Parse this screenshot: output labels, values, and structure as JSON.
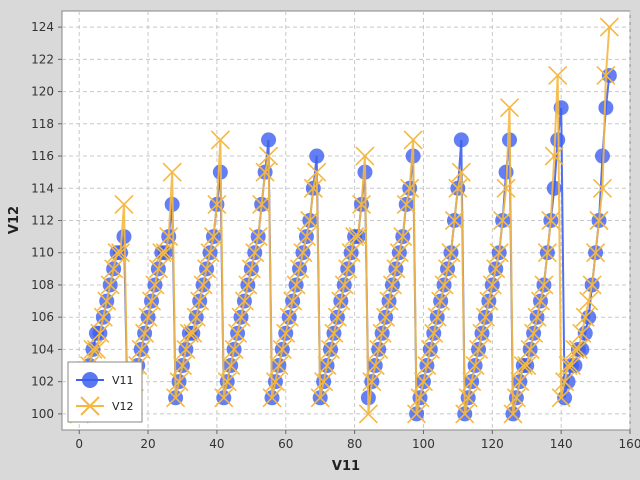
{
  "chart_data": {
    "type": "line",
    "xlabel": "V11",
    "ylabel": "V12",
    "xlim": [
      -5,
      160
    ],
    "ylim": [
      99,
      125
    ],
    "x_ticks": [
      "0",
      "20",
      "40",
      "60",
      "80",
      "100",
      "120",
      "140",
      "160"
    ],
    "y_ticks": [
      "100",
      "102",
      "104",
      "106",
      "108",
      "110",
      "112",
      "114",
      "116",
      "118",
      "120",
      "122",
      "124"
    ],
    "grid": true,
    "legend": {
      "position": "bottom-left"
    },
    "series": [
      {
        "name": "V11",
        "color": "#3d5ff0",
        "marker": "circle",
        "x": [
          0,
          1,
          2,
          3,
          4,
          5,
          6,
          7,
          8,
          9,
          10,
          11,
          12,
          13,
          14,
          15,
          16,
          17,
          18,
          19,
          20,
          21,
          22,
          23,
          24,
          25,
          26,
          27,
          28,
          29,
          30,
          31,
          32,
          33,
          34,
          35,
          36,
          37,
          38,
          39,
          40,
          41,
          42,
          43,
          44,
          45,
          46,
          47,
          48,
          49,
          50,
          51,
          52,
          53,
          54,
          55,
          56,
          57,
          58,
          59,
          60,
          61,
          62,
          63,
          64,
          65,
          66,
          67,
          68,
          69,
          70,
          71,
          72,
          73,
          74,
          75,
          76,
          77,
          78,
          79,
          80,
          81,
          82,
          83,
          84,
          85,
          86,
          87,
          88,
          89,
          90,
          91,
          92,
          93,
          94,
          95,
          96,
          97,
          98,
          99,
          100,
          101,
          102,
          103,
          104,
          105,
          106,
          107,
          108,
          109,
          110,
          111,
          112,
          113,
          114,
          115,
          116,
          117,
          118,
          119,
          120,
          121,
          122,
          123,
          124,
          125,
          126,
          127,
          128,
          129,
          130,
          131,
          132,
          133,
          134,
          135,
          136,
          137,
          138,
          139,
          140,
          141,
          142,
          143,
          144,
          145,
          146,
          147,
          148,
          149,
          150,
          151,
          152,
          153,
          154
        ],
        "y": [
          100,
          101,
          102,
          103,
          104,
          105,
          105,
          106,
          107,
          108,
          109,
          110,
          110,
          111,
          101,
          101,
          102,
          103,
          104,
          105,
          106,
          107,
          108,
          109,
          110,
          110,
          111,
          113,
          101,
          102,
          103,
          104,
          105,
          105,
          106,
          107,
          108,
          109,
          110,
          111,
          113,
          115,
          101,
          102,
          103,
          104,
          105,
          106,
          107,
          108,
          109,
          110,
          111,
          113,
          115,
          117,
          101,
          102,
          103,
          104,
          105,
          106,
          107,
          108,
          109,
          110,
          111,
          112,
          114,
          116,
          101,
          102,
          103,
          104,
          105,
          106,
          107,
          108,
          109,
          110,
          111,
          111,
          113,
          115,
          101,
          102,
          103,
          104,
          105,
          106,
          107,
          108,
          109,
          110,
          111,
          113,
          114,
          116,
          100,
          101,
          102,
          103,
          104,
          105,
          106,
          107,
          108,
          109,
          110,
          112,
          114,
          117,
          100,
          101,
          102,
          103,
          104,
          105,
          106,
          107,
          108,
          109,
          110,
          112,
          115,
          117,
          100,
          101,
          102,
          103,
          103,
          104,
          105,
          106,
          107,
          108,
          110,
          112,
          114,
          117,
          119,
          101,
          102,
          103,
          103,
          104,
          104,
          105,
          106,
          108,
          110,
          112,
          116,
          119,
          121
        ]
      },
      {
        "name": "V12",
        "color": "#f5b840",
        "marker": "x",
        "x": [
          0,
          1,
          2,
          3,
          4,
          5,
          6,
          7,
          8,
          9,
          10,
          11,
          12,
          13,
          14,
          15,
          16,
          17,
          18,
          19,
          20,
          21,
          22,
          23,
          24,
          25,
          26,
          27,
          28,
          29,
          30,
          31,
          32,
          33,
          34,
          35,
          36,
          37,
          38,
          39,
          40,
          41,
          42,
          43,
          44,
          45,
          46,
          47,
          48,
          49,
          50,
          51,
          52,
          53,
          54,
          55,
          56,
          57,
          58,
          59,
          60,
          61,
          62,
          63,
          64,
          65,
          66,
          67,
          68,
          69,
          70,
          71,
          72,
          73,
          74,
          75,
          76,
          77,
          78,
          79,
          80,
          81,
          82,
          83,
          84,
          85,
          86,
          87,
          88,
          89,
          90,
          91,
          92,
          93,
          94,
          95,
          96,
          97,
          98,
          99,
          100,
          101,
          102,
          103,
          104,
          105,
          106,
          107,
          108,
          109,
          110,
          111,
          112,
          113,
          114,
          115,
          116,
          117,
          118,
          119,
          120,
          121,
          122,
          123,
          124,
          125,
          126,
          127,
          128,
          129,
          130,
          131,
          132,
          133,
          134,
          135,
          136,
          137,
          138,
          139,
          140,
          141,
          142,
          143,
          144,
          145,
          146,
          147,
          148,
          149,
          150,
          151,
          152,
          153,
          154
        ],
        "y": [
          100,
          101,
          102,
          103,
          104,
          104,
          105,
          106,
          107,
          108,
          109,
          110,
          110,
          113,
          101,
          101,
          102,
          103,
          104,
          105,
          106,
          107,
          108,
          109,
          110,
          110,
          111,
          115,
          101,
          102,
          103,
          104,
          105,
          105,
          106,
          107,
          108,
          109,
          110,
          111,
          113,
          117,
          101,
          102,
          103,
          104,
          105,
          106,
          107,
          108,
          109,
          110,
          111,
          113,
          115,
          116,
          101,
          102,
          103,
          104,
          105,
          106,
          107,
          108,
          109,
          110,
          111,
          112,
          114,
          115,
          101,
          102,
          103,
          104,
          105,
          106,
          107,
          108,
          109,
          110,
          111,
          111,
          113,
          116,
          100,
          102,
          103,
          104,
          105,
          106,
          107,
          108,
          109,
          110,
          111,
          113,
          114,
          117,
          100,
          101,
          102,
          103,
          104,
          105,
          106,
          107,
          108,
          109,
          110,
          112,
          114,
          115,
          100,
          101,
          102,
          103,
          104,
          105,
          106,
          107,
          108,
          109,
          110,
          112,
          114,
          119,
          100,
          101,
          102,
          103,
          103,
          104,
          105,
          106,
          107,
          108,
          110,
          112,
          116,
          121,
          101,
          102,
          103,
          103,
          104,
          104,
          105,
          106,
          107,
          108,
          110,
          112,
          114,
          121,
          124
        ]
      }
    ]
  }
}
